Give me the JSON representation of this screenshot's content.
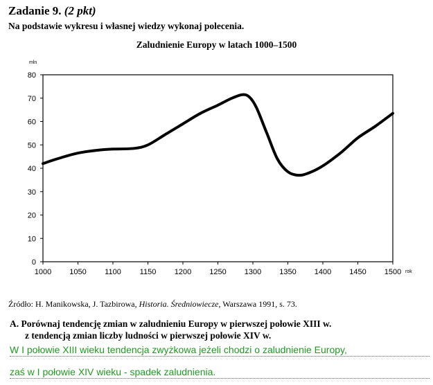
{
  "task": {
    "title": "Zadanie 9.",
    "points": "(2 pkt)",
    "instruction": "Na podstawie wykresu i własnej wiedzy wykonaj polecenia."
  },
  "chart_data": {
    "type": "line",
    "title": "Zaludnienie Europy w latach 1000–1500",
    "ylabel": "mln",
    "xlabel": "rok",
    "xlim": [
      1000,
      1500
    ],
    "ylim": [
      0,
      80
    ],
    "xticks": [
      1000,
      1050,
      1100,
      1150,
      1200,
      1250,
      1300,
      1350,
      1400,
      1450,
      1500
    ],
    "yticks": [
      0,
      10,
      20,
      30,
      40,
      50,
      60,
      70,
      80
    ],
    "grid": false,
    "series": [
      {
        "x": [
          1000,
          1020,
          1050,
          1080,
          1100,
          1130,
          1150,
          1175,
          1200,
          1225,
          1250,
          1270,
          1285,
          1295,
          1305,
          1320,
          1335,
          1350,
          1365,
          1380,
          1400,
          1425,
          1450,
          1475,
          1500
        ],
        "y": [
          42,
          44,
          46.5,
          47.8,
          48.2,
          48.5,
          50,
          54.5,
          59,
          63.5,
          67,
          70,
          71.5,
          70.5,
          66,
          55,
          44,
          38.5,
          37,
          38,
          41,
          46.5,
          53,
          58,
          63.5
        ]
      }
    ]
  },
  "source": {
    "prefix": "Źródło: H. Manikowska, J. Tazbirowa, ",
    "book": "Historia. Średniowiecze",
    "suffix": ", Warszawa 1991, s. 73."
  },
  "question_a": {
    "line1": "A. Porównaj tendencję zmian w zaludnieniu Europy w pierwszej połowie XIII w.",
    "line2": "z tendencją zmian liczby ludności w pierwszej połowie XIV w."
  },
  "answer": {
    "line1": "W I połowie XIII wieku tendencja zwyżkowa jeżeli chodzi o zaludnienie Europy,",
    "line2": "zaś w I połowie XIV wieku - spadek zaludnienia."
  }
}
